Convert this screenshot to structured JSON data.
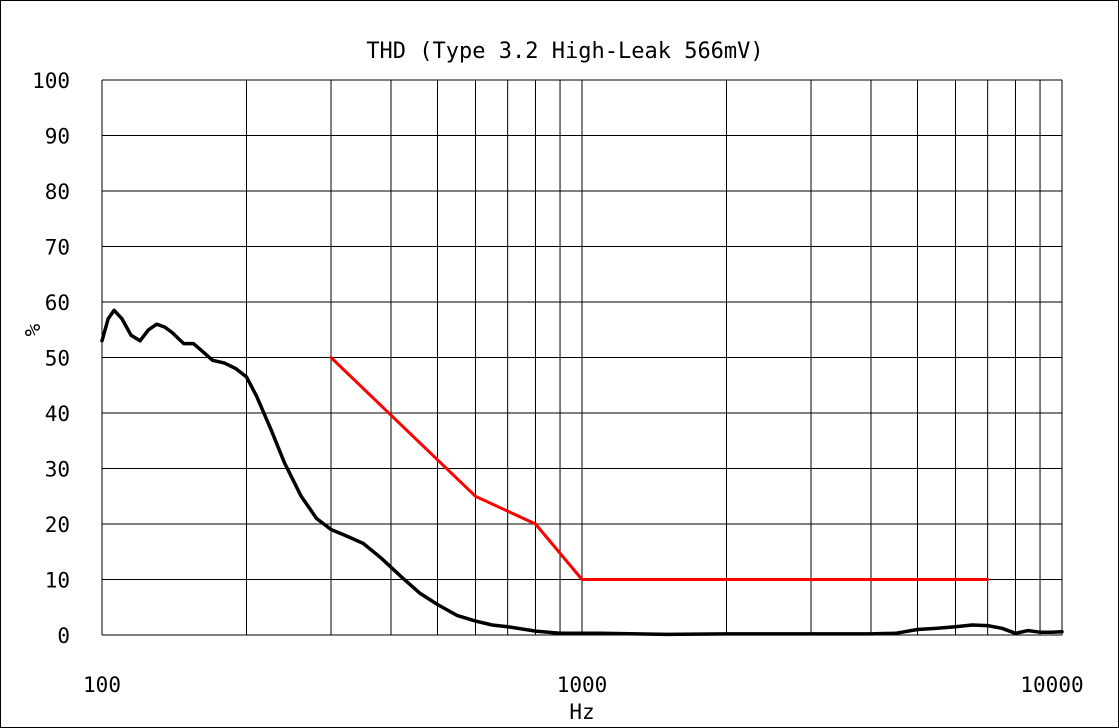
{
  "chart_data": {
    "type": "line",
    "title": "THD (Type 3.2 High-Leak 566mV)",
    "xlabel": "Hz",
    "ylabel": "%",
    "x_scale": "log",
    "xlim": [
      100,
      10000
    ],
    "ylim": [
      0,
      100
    ],
    "x_tick_labels": [
      "100",
      "1000",
      "10000"
    ],
    "x_ticks": [
      100,
      1000,
      10000
    ],
    "y_tick_labels": [
      "0",
      "10",
      "20",
      "30",
      "40",
      "50",
      "60",
      "70",
      "80",
      "90",
      "100"
    ],
    "y_ticks": [
      0,
      10,
      20,
      30,
      40,
      50,
      60,
      70,
      80,
      90,
      100
    ],
    "grid": true,
    "series": [
      {
        "color": "#000000",
        "x": [
          100,
          103,
          106,
          110,
          115,
          120,
          125,
          130,
          135,
          140,
          148,
          155,
          160,
          170,
          180,
          190,
          200,
          210,
          225,
          240,
          260,
          280,
          300,
          320,
          350,
          380,
          420,
          460,
          500,
          550,
          600,
          650,
          700,
          800,
          900,
          1000,
          1100,
          1300,
          1500,
          2000,
          2500,
          3000,
          3500,
          4000,
          4500,
          5000,
          5500,
          6000,
          6500,
          7000,
          7500,
          8000,
          8500,
          9000,
          9500,
          10000
        ],
        "y": [
          53,
          57,
          58.5,
          57,
          54,
          53,
          55,
          56,
          55.5,
          54.5,
          52.5,
          52.5,
          51.5,
          49.5,
          49,
          48,
          46.5,
          43,
          37,
          31,
          25,
          21,
          19,
          18,
          16.5,
          14,
          10.5,
          7.5,
          5.5,
          3.5,
          2.5,
          1.8,
          1.5,
          0.7,
          0.3,
          0.3,
          0.3,
          0.2,
          0.1,
          0.2,
          0.2,
          0.2,
          0.2,
          0.2,
          0.3,
          1,
          1.2,
          1.5,
          1.8,
          1.7,
          1.2,
          0.3,
          0.8,
          0.5,
          0.5,
          0.6
        ]
      },
      {
        "color": "#ff0000",
        "x": [
          300,
          600,
          800,
          1000,
          7000
        ],
        "y": [
          50,
          25,
          20,
          10,
          10
        ]
      }
    ]
  }
}
